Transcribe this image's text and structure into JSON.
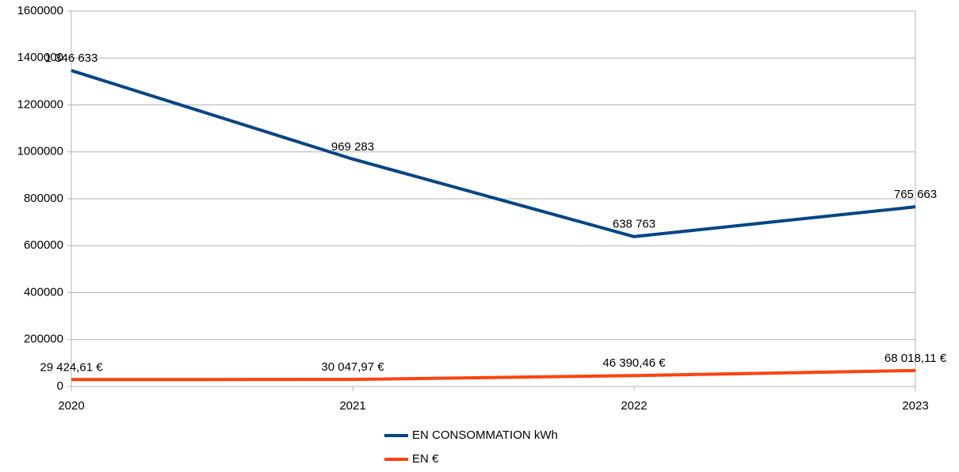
{
  "chart_data": {
    "type": "line",
    "x": [
      2020,
      2021,
      2022,
      2023
    ],
    "xlim": [
      2020,
      2023
    ],
    "xticks": [
      2020,
      2021,
      2022,
      2023
    ],
    "ylim": [
      0,
      1600000
    ],
    "yticks": [
      0,
      200000,
      400000,
      600000,
      800000,
      1000000,
      1200000,
      1400000,
      1600000
    ],
    "grid": true,
    "legend": "bottom",
    "series": [
      {
        "name": "EN CONSOMMATION kWh",
        "color": "#004586",
        "values": [
          1346633,
          969283,
          638763,
          765663
        ],
        "value_labels": [
          "1 346 633",
          "969 283",
          "638 763",
          "765 663"
        ]
      },
      {
        "name": "EN €",
        "color": "#ff420e",
        "values": [
          29424.61,
          30047.97,
          46390.46,
          68018.11
        ],
        "value_labels": [
          "29 424,61 €",
          "30 047,97 €",
          "46 390,46 €",
          "68 018,11 €"
        ]
      }
    ]
  }
}
